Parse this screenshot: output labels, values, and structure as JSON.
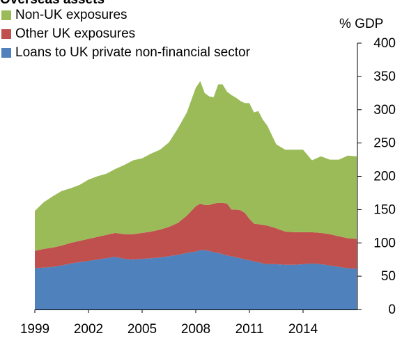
{
  "chart_data": {
    "type": "area",
    "stacked": true,
    "title": "Overseas assets",
    "ylabel": "% GDP",
    "ylim": [
      0,
      400
    ],
    "yticks": [
      0,
      50,
      100,
      150,
      200,
      250,
      300,
      350,
      400
    ],
    "xtick_labels": [
      "1999",
      "2002",
      "2005",
      "2008",
      "2011",
      "2014"
    ],
    "x_range": [
      1999.0,
      2017.0
    ],
    "grid": false,
    "legend_position": "top-left",
    "x": [
      1999.0,
      1999.5,
      2000.0,
      2000.5,
      2001.0,
      2001.5,
      2002.0,
      2002.5,
      2003.0,
      2003.5,
      2004.0,
      2004.5,
      2005.0,
      2005.5,
      2006.0,
      2006.5,
      2007.0,
      2007.5,
      2008.0,
      2008.25,
      2008.5,
      2008.75,
      2009.0,
      2009.25,
      2009.5,
      2009.75,
      2010.0,
      2010.25,
      2010.5,
      2010.75,
      2011.0,
      2011.25,
      2011.5,
      2011.75,
      2012.0,
      2012.5,
      2013.0,
      2013.5,
      2014.0,
      2014.5,
      2015.0,
      2015.5,
      2016.0,
      2016.5,
      2017.0
    ],
    "series": [
      {
        "name": "Loans to UK private non-financial sector",
        "color": "#4f81bd",
        "values": [
          62,
          63,
          64,
          66,
          69,
          71,
          73,
          75,
          77,
          79,
          76,
          75,
          76,
          77,
          78,
          80,
          82,
          85,
          87,
          89,
          89,
          88,
          86,
          85,
          83,
          81,
          80,
          78,
          77,
          75,
          74,
          72,
          71,
          69,
          68,
          68,
          67,
          67,
          68,
          69,
          68,
          66,
          64,
          62,
          61
        ]
      },
      {
        "name": "Other UK exposures",
        "color": "#c0504d",
        "values": [
          26,
          28,
          29,
          30,
          31,
          32,
          33,
          34,
          35,
          36,
          37,
          38,
          39,
          40,
          42,
          44,
          48,
          56,
          68,
          70,
          68,
          69,
          73,
          75,
          77,
          78,
          70,
          72,
          72,
          70,
          62,
          57,
          57,
          58,
          58,
          54,
          50,
          49,
          48,
          47,
          47,
          47,
          46,
          45,
          45
        ]
      },
      {
        "name": "Non-UK exposures",
        "color": "#9bbb59",
        "values": [
          60,
          70,
          77,
          82,
          82,
          84,
          89,
          91,
          92,
          96,
          104,
          111,
          112,
          117,
          120,
          127,
          142,
          155,
          178,
          184,
          168,
          163,
          160,
          178,
          178,
          168,
          172,
          168,
          164,
          165,
          174,
          167,
          170,
          158,
          150,
          126,
          123,
          124,
          124,
          108,
          115,
          112,
          115,
          124,
          124
        ]
      }
    ]
  }
}
